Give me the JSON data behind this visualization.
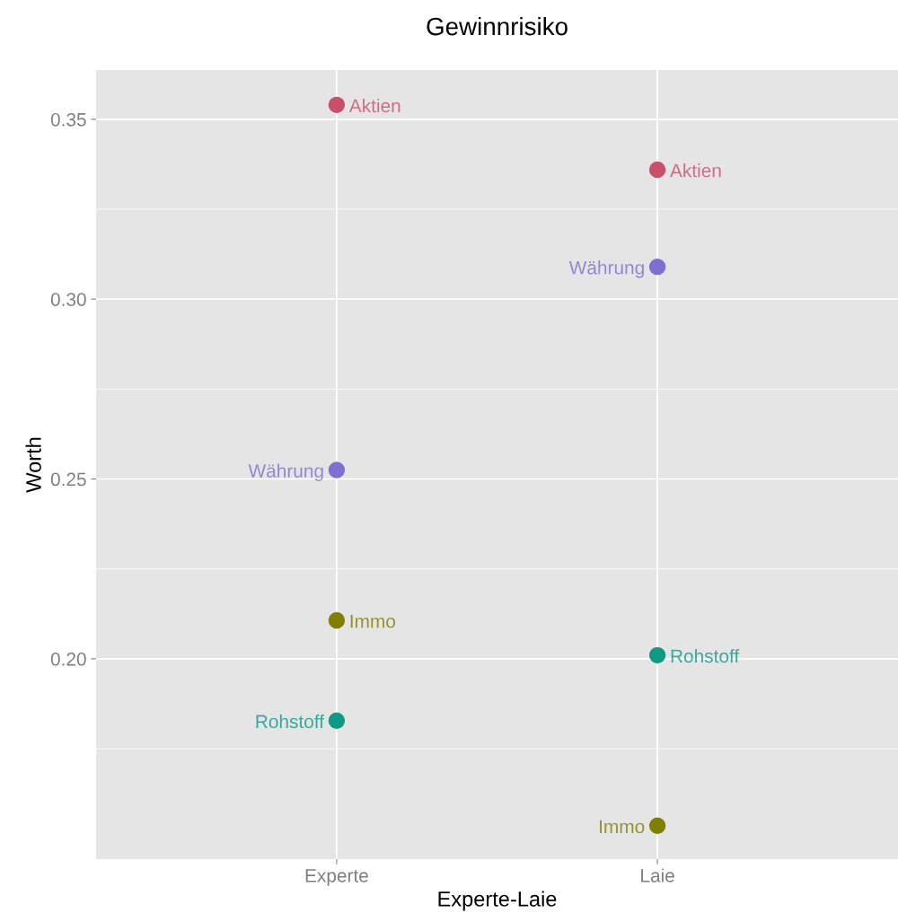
{
  "chart_data": {
    "type": "scatter",
    "title": "Gewinnrisiko",
    "xlabel": "Experte-Laie",
    "ylabel": "Worth",
    "categories": [
      "Experte",
      "Laie"
    ],
    "series": [
      {
        "name": "Aktien",
        "color": "#c9506a",
        "values": [
          0.354,
          0.336
        ]
      },
      {
        "name": "Währung",
        "color": "#7f6fd0",
        "values": [
          0.2525,
          0.309
        ]
      },
      {
        "name": "Immo",
        "color": "#7f7f00",
        "values": [
          0.2107,
          0.1536
        ]
      },
      {
        "name": "Rohstoff",
        "color": "#0f9a84",
        "values": [
          0.1828,
          0.201
        ]
      }
    ],
    "ylim": [
      0.1443,
      0.3637
    ],
    "yticks": [
      {
        "value": 0.2,
        "label": "0.20"
      },
      {
        "value": 0.25,
        "label": "0.25"
      },
      {
        "value": 0.3,
        "label": "0.30"
      },
      {
        "value": 0.35,
        "label": "0.35"
      }
    ],
    "grid": true,
    "marker": "circle",
    "legend": false
  }
}
